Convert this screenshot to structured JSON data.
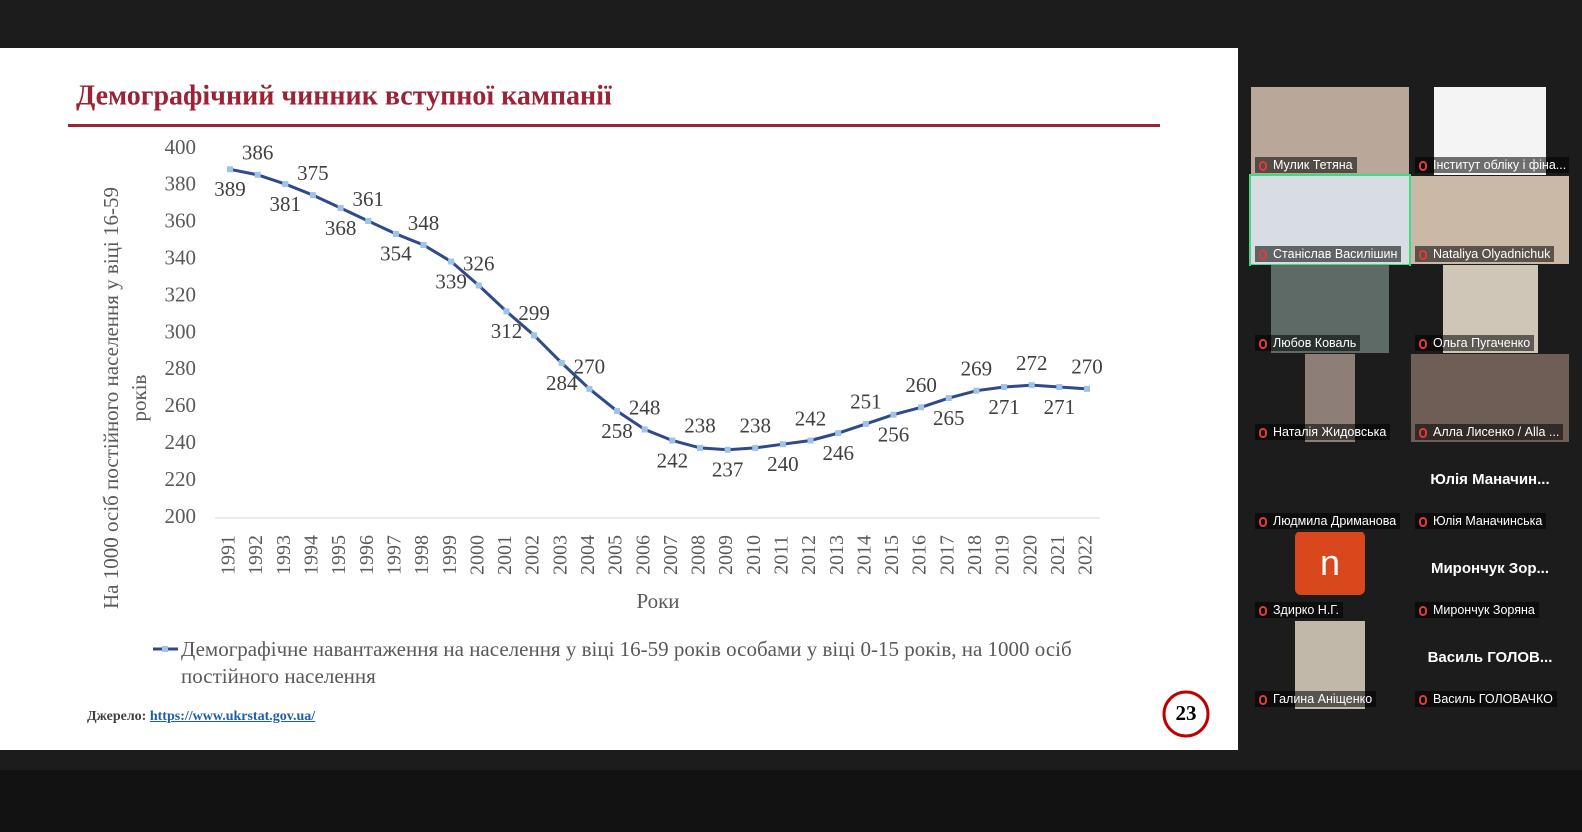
{
  "slide_title": "Демографічний чинник вступної кампанії",
  "chart_data": {
    "type": "line",
    "y_label": "На 1000 осіб постійного населення у віці 16-59 років",
    "x_label": "Роки",
    "categories": [
      "1991",
      "1992",
      "1993",
      "1994",
      "1995",
      "1996",
      "1997",
      "1998",
      "1999",
      "2000",
      "2001",
      "2002",
      "2003",
      "2004",
      "2005",
      "2006",
      "2007",
      "2008",
      "2009",
      "2010",
      "2011",
      "2012",
      "2013",
      "2014",
      "2015",
      "2016",
      "2017",
      "2018",
      "2019",
      "2020",
      "2021",
      "2022"
    ],
    "series": [
      {
        "name": "Демографічне навантаження на населення у віці 16-59 років особами у віці 0-15 років, на 1000 осіб постійного населення",
        "color": "#2e4a8a",
        "marker_color": "#9dc3e6",
        "values": [
          389,
          386,
          381,
          375,
          368,
          361,
          354,
          348,
          339,
          326,
          312,
          299,
          284,
          270,
          258,
          248,
          242,
          238,
          237,
          238,
          240,
          242,
          246,
          251,
          256,
          260,
          265,
          269,
          271,
          272,
          271,
          270
        ]
      }
    ],
    "ylim": [
      200,
      400
    ],
    "yticks": [
      200,
      220,
      240,
      260,
      280,
      300,
      320,
      340,
      360,
      380,
      400
    ],
    "grid": false,
    "legend": "bottom"
  },
  "source_label": "Джерело:",
  "source_link": "https://www.ukrstat.gov.ua/",
  "page_number": "23",
  "participants": [
    {
      "name": "Мулик Тетяна",
      "video": true
    },
    {
      "name": "Інститут обліку і фіна...",
      "video": true
    },
    {
      "name": "Станіслав Василішин",
      "video": true,
      "active": true
    },
    {
      "name": "Nataliya Olyadnichuk",
      "video": true
    },
    {
      "name": "Любов Коваль",
      "video": true
    },
    {
      "name": "Ольга Пугаченко",
      "video": true
    },
    {
      "name": "Наталія Жидовська",
      "video": true
    },
    {
      "name": "Алла Лисенко / Alla ...",
      "video": true
    },
    {
      "name": "Людмила Дриманова"
    },
    {
      "name": "Юлія Маначинська",
      "tile_label": "Юлія Маначин..."
    },
    {
      "name": "Здирко Н.Г.",
      "avatar": "n"
    },
    {
      "name": "Мирончук Зоряна",
      "tile_label": "Мирончук Зор..."
    },
    {
      "name": "Галина Аніщенко",
      "video": true
    },
    {
      "name": "Василь ГОЛОВАЧКО",
      "tile_label": "Василь ГОЛОВ..."
    }
  ]
}
